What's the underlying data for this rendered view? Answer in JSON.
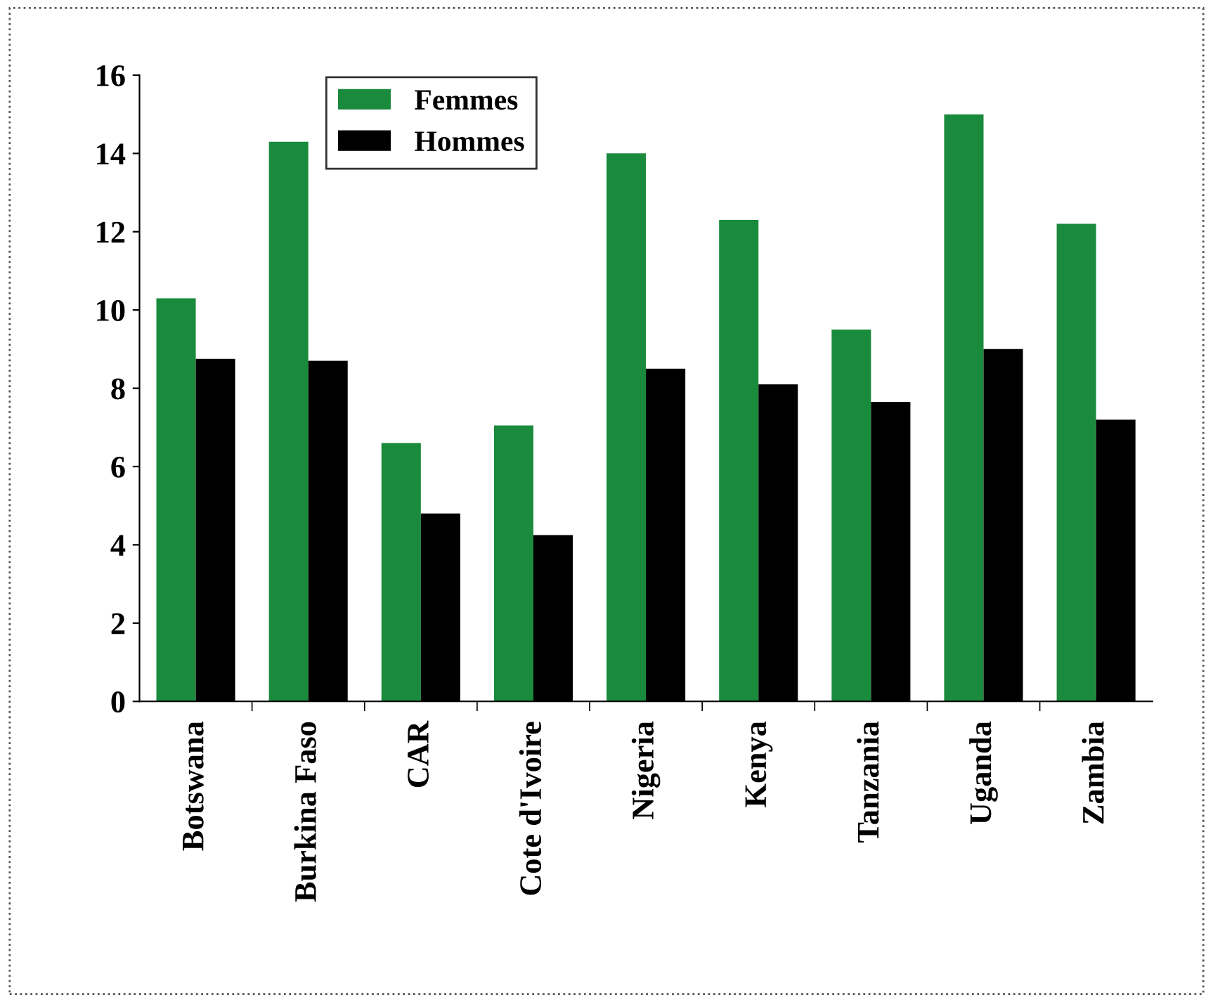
{
  "chart_data": {
    "type": "bar",
    "categories": [
      "Botswana",
      "Burkina Faso",
      "CAR",
      "Cote d'Ivoire",
      "Nigeria",
      "Kenya",
      "Tanzania",
      "Uganda",
      "Zambia"
    ],
    "series": [
      {
        "name": "Femmes",
        "color": "#1a8a3c",
        "values": [
          10.3,
          14.3,
          6.6,
          7.05,
          14.0,
          12.3,
          9.5,
          15.0,
          12.2
        ]
      },
      {
        "name": "Hommes",
        "color": "#000000",
        "values": [
          8.75,
          8.7,
          4.8,
          4.25,
          8.5,
          8.1,
          7.65,
          9.0,
          7.2
        ]
      }
    ],
    "ylim": [
      0,
      16
    ],
    "yticks": [
      0,
      2,
      4,
      6,
      8,
      10,
      12,
      14,
      16
    ],
    "grid": false,
    "legend": "top left"
  }
}
